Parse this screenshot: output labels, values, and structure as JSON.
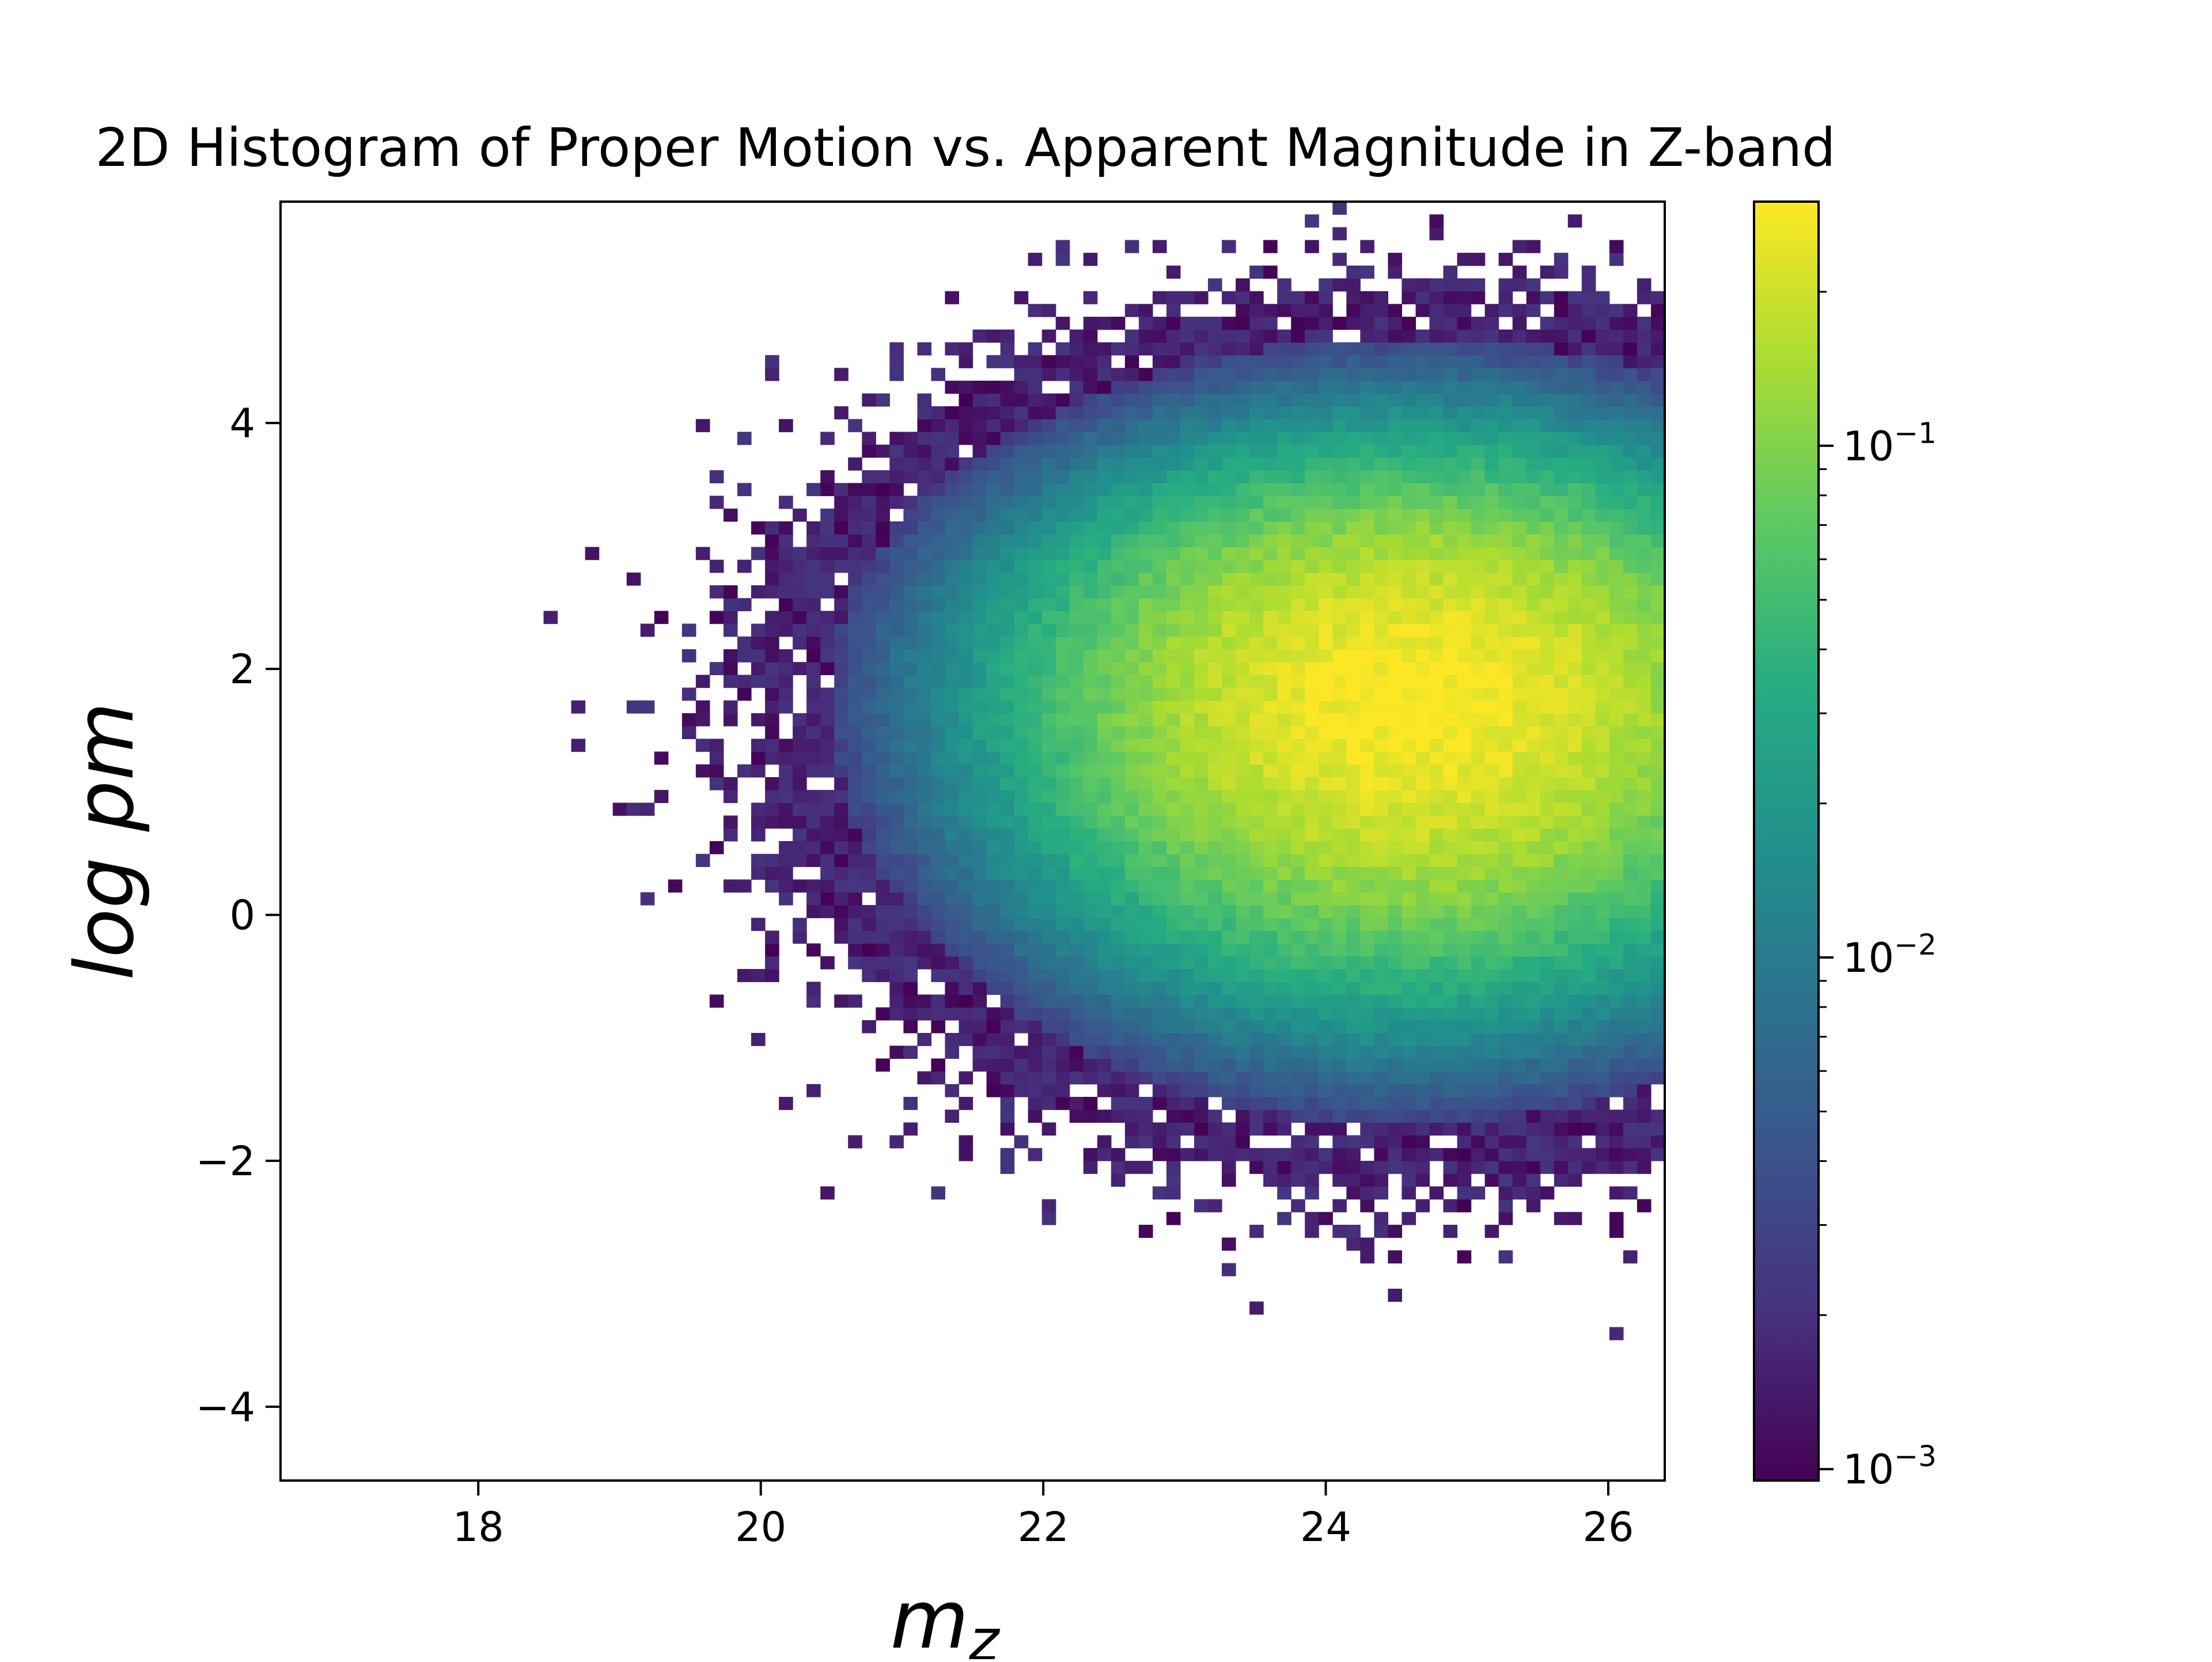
{
  "chart_data": {
    "type": "heatmap",
    "title": "2D Histogram of Proper Motion vs. Apparent Magnitude in Z-band",
    "xlabel": "m",
    "xlabel_subscript": "z",
    "ylabel": "log pm",
    "xlim": [
      16.6,
      26.4
    ],
    "ylim": [
      -4.6,
      5.8
    ],
    "x_ticks": [
      18,
      20,
      22,
      24,
      26
    ],
    "y_ticks": [
      4,
      2,
      0,
      -2,
      -4
    ],
    "x_tick_labels": [
      "18",
      "20",
      "22",
      "24",
      "26"
    ],
    "y_tick_labels": [
      "4",
      "2",
      "0",
      "−2",
      "−4"
    ],
    "bins": [
      100,
      100
    ],
    "colormap": "viridis",
    "color_scale": "log",
    "colorbar": {
      "min": 0.00095,
      "max": 0.3,
      "ticks": [
        {
          "base": "10",
          "exp": "−1",
          "value": 0.1
        },
        {
          "base": "10",
          "exp": "−2",
          "value": 0.01
        },
        {
          "base": "10",
          "exp": "−3",
          "value": 0.001
        }
      ]
    },
    "density_peak": {
      "x": 24.6,
      "y": 1.8,
      "value": 0.3
    },
    "density_spread": {
      "x": 1.35,
      "y_upper": 0.95,
      "y_lower": 1.15
    },
    "grid": false
  }
}
